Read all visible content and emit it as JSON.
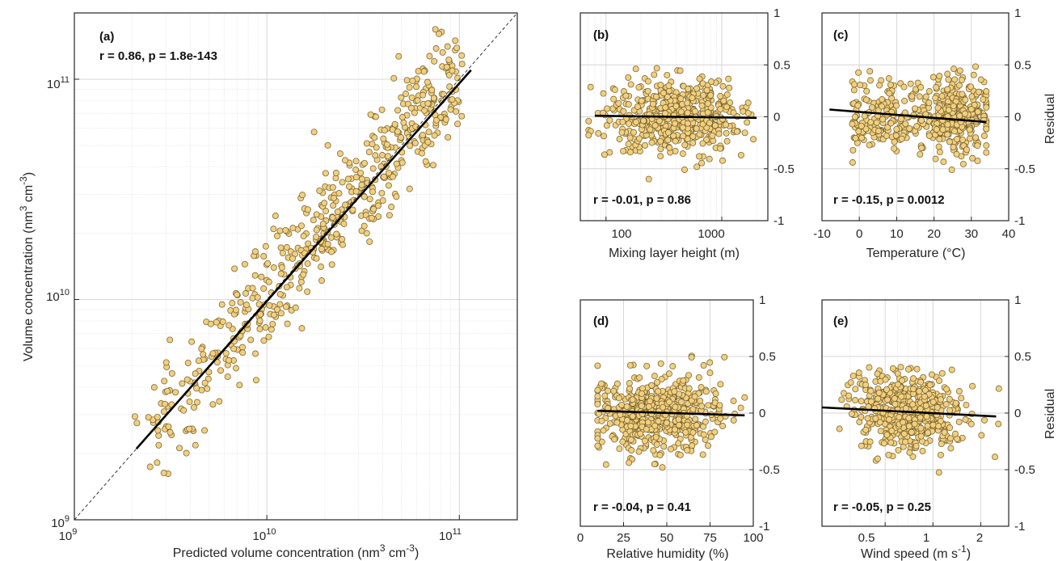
{
  "colors": {
    "marker_fill": "#f2cf7e",
    "marker_edge": "#6b5a2a",
    "fit_line": "#000000",
    "grid": "#d3d3d3"
  },
  "panels": {
    "a": {
      "tag": "(a)",
      "stat": "r = 0.86, p = 1.8e-143",
      "xlabel_main": "Predicted volume concentration (nm",
      "xlabel_sup1": "3",
      "xlabel_mid": " cm",
      "xlabel_sup2": "-3",
      "xlabel_end": ")",
      "ylabel_main": "Volume concentration (nm",
      "ylabel_sup1": "3",
      "ylabel_mid": " cm",
      "ylabel_sup2": "-3",
      "ylabel_end": ")",
      "xtick_base": [
        "10",
        "10",
        "10"
      ],
      "xtick_exp": [
        "9",
        "10",
        "11"
      ],
      "ytick_base": [
        "10",
        "10",
        "10"
      ],
      "ytick_exp": [
        "9",
        "10",
        "11"
      ]
    },
    "b": {
      "tag": "(b)",
      "stat": "r = -0.01, p = 0.86",
      "xlabel": "Mixing layer height (m)",
      "xticks": [
        "100",
        "1000"
      ]
    },
    "c": {
      "tag": "(c)",
      "stat": "r = -0.15, p = 0.0012",
      "xlabel": "Temperature (°C)",
      "xticks": [
        "-10",
        "0",
        "10",
        "20",
        "30",
        "40"
      ],
      "ylabel": "Residual"
    },
    "d": {
      "tag": "(d)",
      "stat": "r = -0.04, p = 0.41",
      "xlabel": "Relative humidity (%)",
      "xticks": [
        "0",
        "25",
        "50",
        "75",
        "100"
      ]
    },
    "e": {
      "tag": "(e)",
      "stat": "r = -0.05, p = 0.25",
      "xlabel_main": "Wind speed (m s",
      "xlabel_sup": "-1",
      "xlabel_end": ")",
      "xticks": [
        "0.5",
        "1",
        "2"
      ],
      "ylabel": "Residual"
    },
    "residual_yticks": [
      "1",
      "0.5",
      "0",
      "-0.5",
      "-1"
    ]
  },
  "chart_data": [
    {
      "panel": "a",
      "type": "scatter",
      "xscale": "log",
      "yscale": "log",
      "xlim": [
        1000000000.0,
        200000000000.0
      ],
      "ylim": [
        1000000000.0,
        200000000000.0
      ],
      "fit_line": {
        "x": [
          2100000000.0,
          115000000000.0
        ],
        "y": [
          2100000000.0,
          110000000000.0
        ]
      },
      "identity_line": true,
      "grid": true
    },
    {
      "panel": "b",
      "type": "scatter",
      "xscale": "log",
      "xlim": [
        60,
        2500
      ],
      "ylim": [
        -1,
        1
      ],
      "fit_line": {
        "x": [
          80,
          2000
        ],
        "y": [
          0.01,
          -0.01
        ]
      },
      "grid": true
    },
    {
      "panel": "c",
      "type": "scatter",
      "xlim": [
        -10,
        40
      ],
      "ylim": [
        -1,
        1
      ],
      "fit_line": {
        "x": [
          -8,
          34
        ],
        "y": [
          0.07,
          -0.05
        ]
      },
      "grid": true
    },
    {
      "panel": "d",
      "type": "scatter",
      "xlim": [
        0,
        100
      ],
      "ylim": [
        -1,
        1
      ],
      "fit_line": {
        "x": [
          10,
          95
        ],
        "y": [
          0.02,
          -0.02
        ]
      },
      "grid": true
    },
    {
      "panel": "e",
      "type": "scatter",
      "xscale": "log",
      "xlim": [
        0.2,
        3
      ],
      "ylim": [
        -1,
        1
      ],
      "fit_line": {
        "x": [
          0.2,
          2.5
        ],
        "y": [
          0.05,
          -0.03
        ]
      },
      "grid": true
    }
  ]
}
